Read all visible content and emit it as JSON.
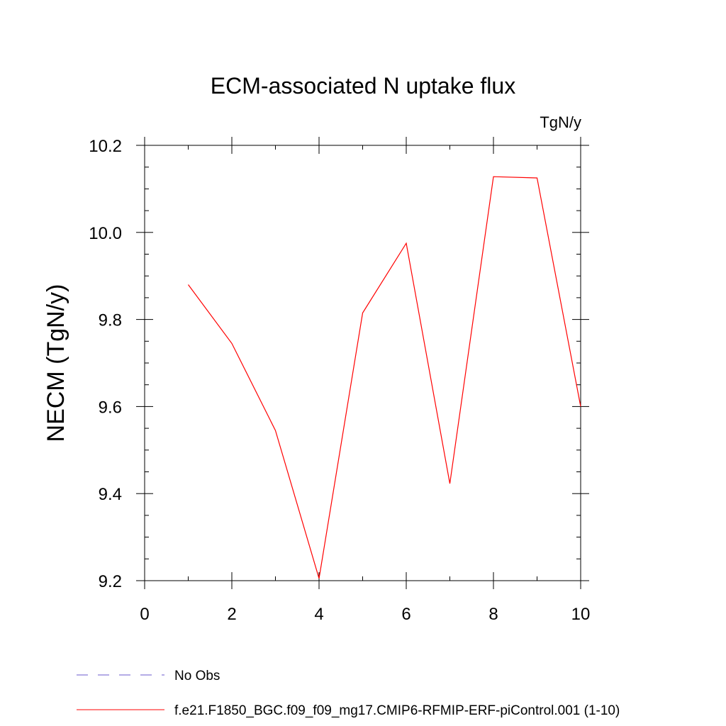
{
  "chart_data": {
    "type": "line",
    "title": "ECM-associated N uptake flux",
    "units_label": "TgN/y",
    "xlabel": "",
    "ylabel": "NECM  (TgN/y)",
    "xlim": [
      0,
      10
    ],
    "ylim": [
      9.2,
      10.2
    ],
    "x_ticks": [
      "0",
      "2",
      "4",
      "6",
      "8",
      "10"
    ],
    "y_ticks": [
      "9.2",
      "9.4",
      "9.6",
      "9.8",
      "10.0",
      "10.2"
    ],
    "grid": false,
    "legend_position": "bottom",
    "series": [
      {
        "name": "f.e21.F1850_BGC.f09_f09_mg17.CMIP6-RFMIP-ERF-piControl.001 (1-10)",
        "color": "#ff0000",
        "style": "solid",
        "x": [
          1,
          2,
          3,
          4,
          5,
          6,
          7,
          8,
          9,
          10
        ],
        "y": [
          9.88,
          9.745,
          9.545,
          9.205,
          9.815,
          9.975,
          9.423,
          10.128,
          10.125,
          9.6
        ]
      }
    ],
    "legend": [
      {
        "label": "No Obs",
        "color": "#6a5acd",
        "style": "dashed"
      },
      {
        "label": "f.e21.F1850_BGC.f09_f09_mg17.CMIP6-RFMIP-ERF-piControl.001 (1-10)",
        "color": "#ff0000",
        "style": "solid"
      }
    ]
  }
}
